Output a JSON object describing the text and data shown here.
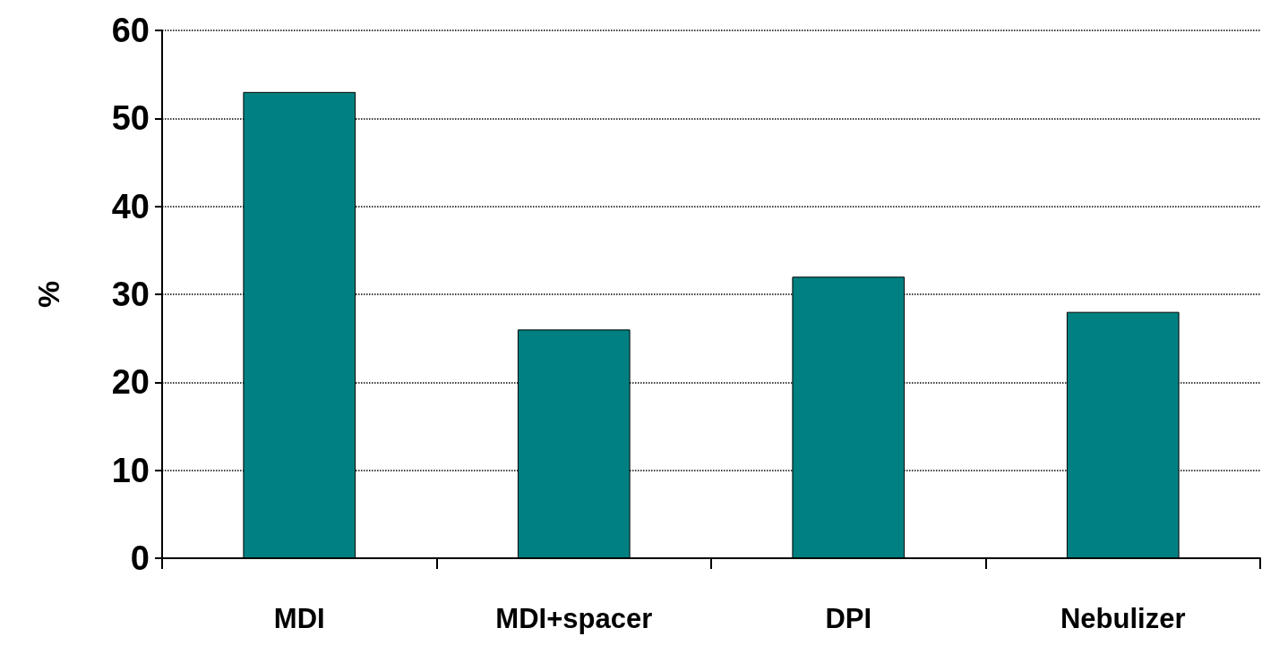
{
  "chart_data": {
    "type": "bar",
    "ylabel": "%",
    "categories": [
      "MDI",
      "MDI+spacer",
      "DPI",
      "Nebulizer"
    ],
    "values": [
      53,
      26,
      32,
      28
    ],
    "color": "#008080",
    "ylim": [
      0,
      60
    ],
    "yticks": [
      0,
      10,
      20,
      30,
      40,
      50,
      60
    ],
    "grid": "y"
  }
}
